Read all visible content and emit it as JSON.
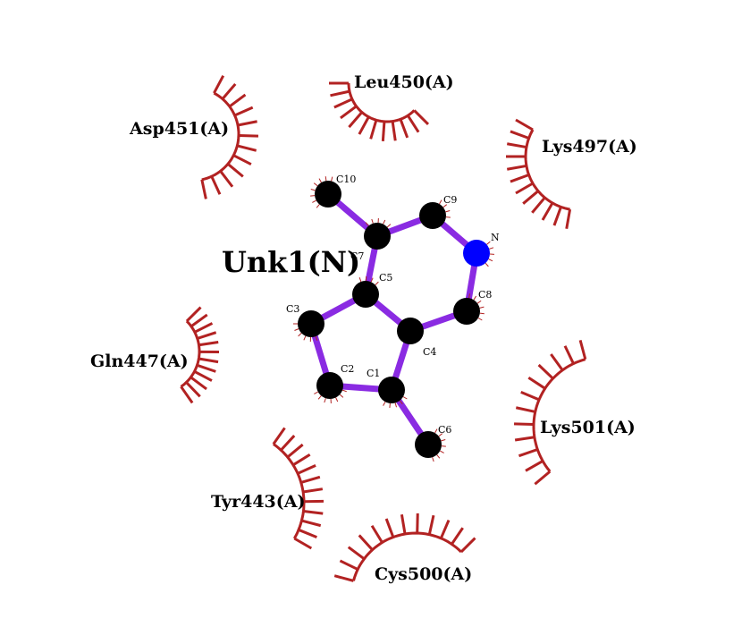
{
  "ligand": {
    "name": "Unk1(N)",
    "color": "#0000ee",
    "bond_color": "#8a2be2",
    "atom_color": "#000000",
    "nitrogen_color": "#0000ff",
    "atoms": [
      {
        "id": "C10",
        "label": "C10",
        "element": "C"
      },
      {
        "id": "C9",
        "label": "C9",
        "element": "C"
      },
      {
        "id": "N",
        "label": "N",
        "element": "N"
      },
      {
        "id": "C7",
        "label": "C7",
        "element": "C"
      },
      {
        "id": "C5",
        "label": "C5",
        "element": "C"
      },
      {
        "id": "C8",
        "label": "C8",
        "element": "C"
      },
      {
        "id": "C3",
        "label": "C3",
        "element": "C"
      },
      {
        "id": "C4",
        "label": "C4",
        "element": "C"
      },
      {
        "id": "C2",
        "label": "C2",
        "element": "C"
      },
      {
        "id": "C1",
        "label": "C1",
        "element": "C"
      },
      {
        "id": "C6",
        "label": "C6",
        "element": "C"
      }
    ],
    "bonds": [
      [
        "C10",
        "C7"
      ],
      [
        "C7",
        "C9"
      ],
      [
        "C9",
        "N"
      ],
      [
        "N",
        "C8"
      ],
      [
        "C8",
        "C4"
      ],
      [
        "C4",
        "C5"
      ],
      [
        "C5",
        "C7"
      ],
      [
        "C5",
        "C3"
      ],
      [
        "C3",
        "C2"
      ],
      [
        "C2",
        "C1"
      ],
      [
        "C1",
        "C4"
      ],
      [
        "C1",
        "C6"
      ]
    ]
  },
  "residues": [
    {
      "id": "leu450",
      "label": "Leu450(A)"
    },
    {
      "id": "asp451",
      "label": "Asp451(A)"
    },
    {
      "id": "lys497",
      "label": "Lys497(A)"
    },
    {
      "id": "gln447",
      "label": "Gln447(A)"
    },
    {
      "id": "lys501",
      "label": "Lys501(A)"
    },
    {
      "id": "tyr443",
      "label": "Tyr443(A)"
    },
    {
      "id": "cys500",
      "label": "Cys500(A)"
    }
  ],
  "hydrophobic_color": "#b22222"
}
